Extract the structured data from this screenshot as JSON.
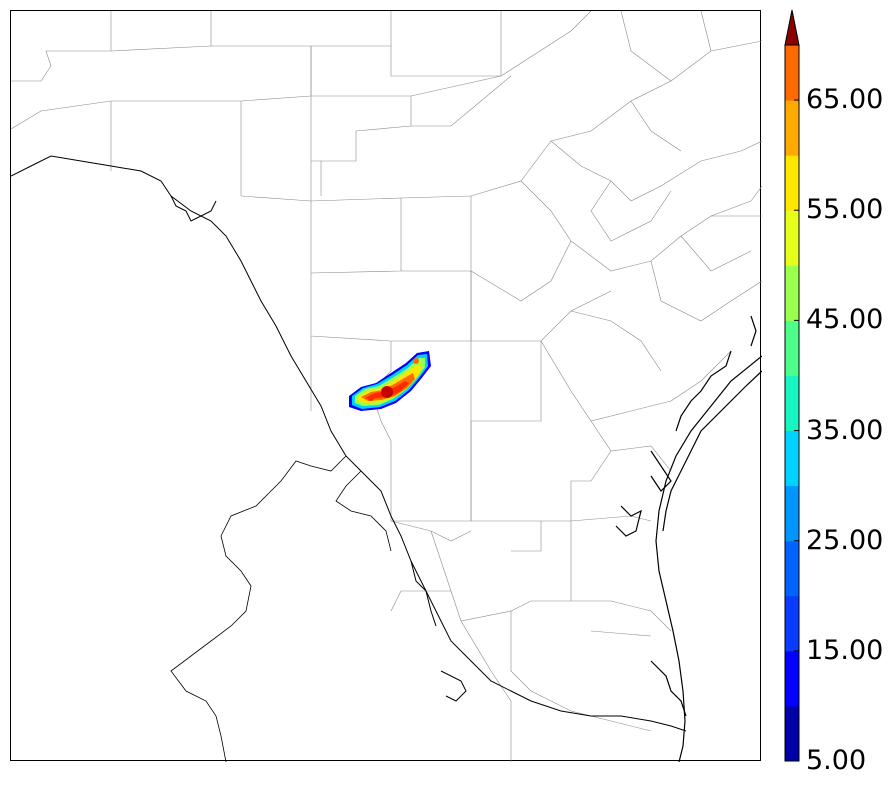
{
  "colorbar": {
    "min": 5,
    "max": 70,
    "step": 5,
    "extend": "max",
    "colors": [
      "#0000a8",
      "#0000ff",
      "#0a3cff",
      "#0064ff",
      "#0096ff",
      "#00d2ff",
      "#17f5c0",
      "#4dff8a",
      "#9bff4d",
      "#e6ff1a",
      "#ffe600",
      "#ffaa00",
      "#ff6a00",
      "#ff2a00",
      "#c80000",
      "#8b0000"
    ],
    "tick_labels": [
      {
        "value": 5,
        "label": "5.00"
      },
      {
        "value": 15,
        "label": "15.00"
      },
      {
        "value": 25,
        "label": "25.00"
      },
      {
        "value": 35,
        "label": "35.00"
      },
      {
        "value": 45,
        "label": "45.00"
      },
      {
        "value": 55,
        "label": "55.00"
      },
      {
        "value": 65,
        "label": "65.00"
      }
    ]
  }
}
